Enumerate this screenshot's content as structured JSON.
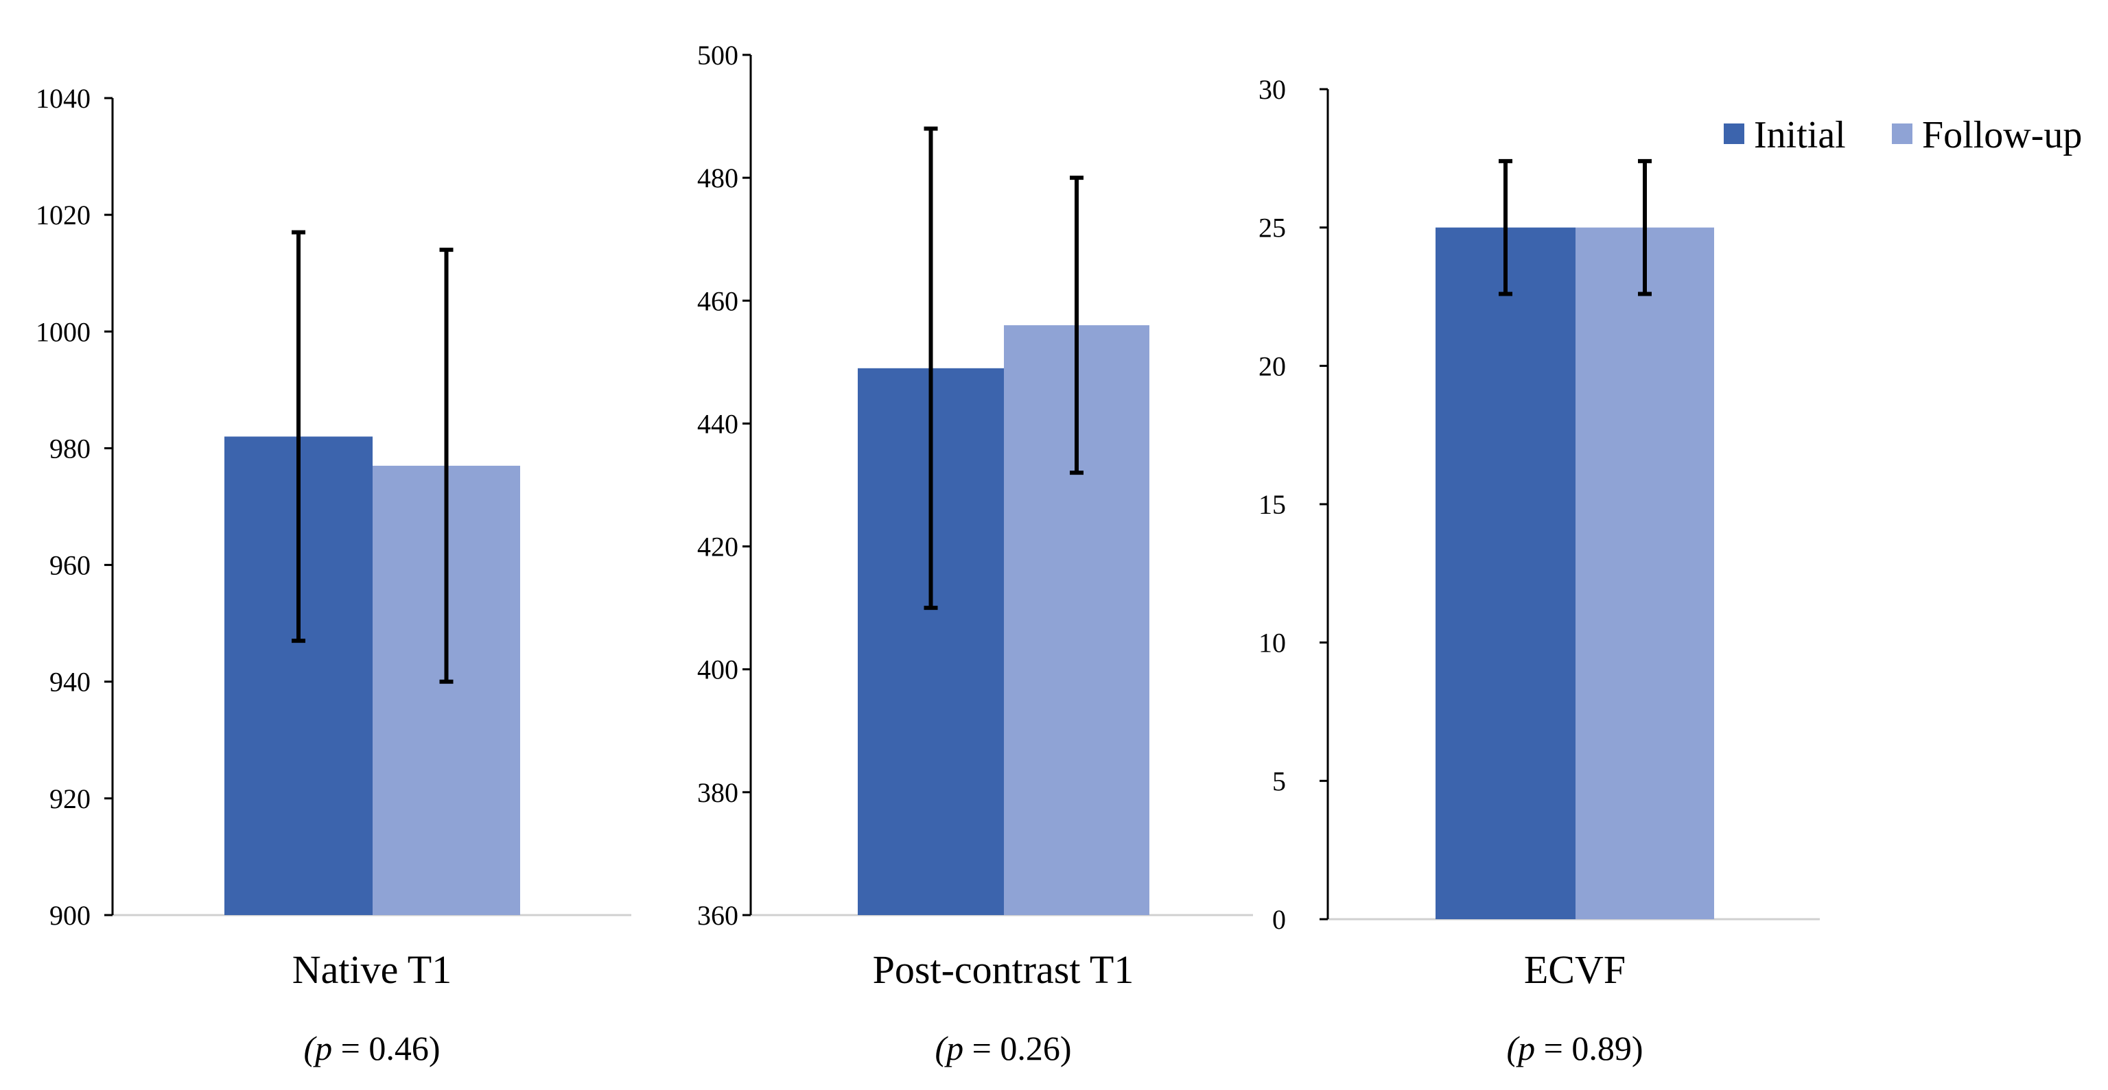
{
  "colors": {
    "initial": "#3c64ad",
    "followup": "#8fa3d5",
    "axis": "#000000",
    "baseline": "#d0d0d0",
    "error_bar": "#000000"
  },
  "legend": [
    {
      "label": "Initial",
      "color": "#3c64ad"
    },
    {
      "label": "Follow-up",
      "color": "#8fa3d5"
    }
  ],
  "chart_data": [
    {
      "type": "bar",
      "title": "Native T1",
      "subtitle": {
        "open": "(",
        "var": "p",
        "rest": " = 0.46)"
      },
      "categories": [
        "Native T1"
      ],
      "series": [
        {
          "name": "Initial",
          "values": [
            982
          ],
          "error_low": [
            947
          ],
          "error_high": [
            1017
          ]
        },
        {
          "name": "Follow-up",
          "values": [
            977
          ],
          "error_low": [
            940
          ],
          "error_high": [
            1014
          ]
        }
      ],
      "ylim": [
        900,
        1040
      ],
      "yticks": [
        900,
        920,
        940,
        960,
        980,
        1000,
        1020,
        1040
      ]
    },
    {
      "type": "bar",
      "title": "Post-contrast T1",
      "subtitle": {
        "open": "(",
        "var": "p",
        "rest": " = 0.26)"
      },
      "categories": [
        "Post-contrast T1"
      ],
      "series": [
        {
          "name": "Initial",
          "values": [
            449
          ],
          "error_low": [
            410
          ],
          "error_high": [
            488
          ]
        },
        {
          "name": "Follow-up",
          "values": [
            456
          ],
          "error_low": [
            432
          ],
          "error_high": [
            480
          ]
        }
      ],
      "ylim": [
        360,
        500
      ],
      "yticks": [
        360,
        380,
        400,
        420,
        440,
        460,
        480,
        500
      ]
    },
    {
      "type": "bar",
      "title": "ECVF",
      "subtitle": {
        "open": "(",
        "var": "p",
        "rest": " = 0.89)"
      },
      "categories": [
        "ECVF"
      ],
      "series": [
        {
          "name": "Initial",
          "values": [
            25.0
          ],
          "error_low": [
            22.6
          ],
          "error_high": [
            27.4
          ]
        },
        {
          "name": "Follow-up",
          "values": [
            25.0
          ],
          "error_low": [
            22.6
          ],
          "error_high": [
            27.4
          ]
        }
      ],
      "ylim": [
        0,
        30
      ],
      "yticks": [
        0,
        5,
        10,
        15,
        20,
        25,
        30
      ]
    }
  ]
}
